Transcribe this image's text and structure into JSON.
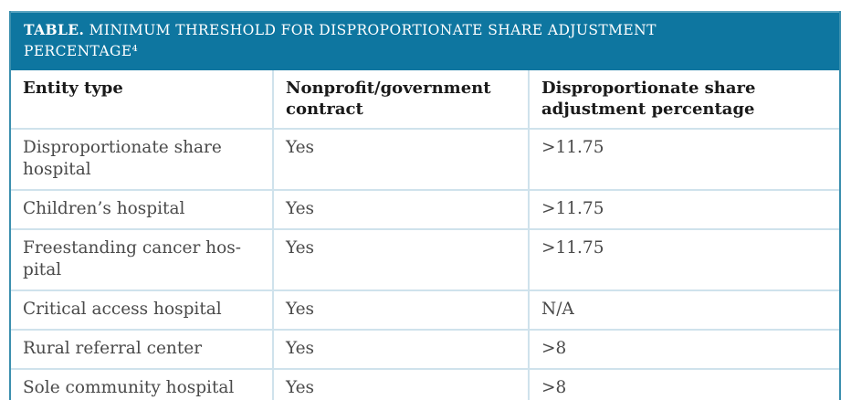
{
  "colors": {
    "band_background": "#0e76a0",
    "band_top_edge": "#5ba4c0",
    "band_text": "#ffffff",
    "side_border": "#3b8fae",
    "bottom_border": "#2d86a7",
    "cell_divider": "#cfe2ec",
    "header_text": "#1a1a1a",
    "body_text": "#4a4a4a"
  },
  "table": {
    "title_label": "TABLE.",
    "title_text": " MINIMUM THRESHOLD FOR DISPROPORTIONATE SHARE ADJUSTMENT\nPERCENTAGE⁴",
    "columns": [
      "Entity type",
      "Nonprofit/government\ncontract",
      "Disproportionate share\nadjustment percentage"
    ],
    "rows": [
      [
        "Disproportionate share\nhospital",
        "Yes",
        ">11.75"
      ],
      [
        "Children’s hospital",
        "Yes",
        ">11.75"
      ],
      [
        "Freestanding cancer hos-\npital",
        "Yes",
        ">11.75"
      ],
      [
        "Critical access hospital",
        "Yes",
        "N/A"
      ],
      [
        "Rural referral center",
        "Yes",
        ">8"
      ],
      [
        "Sole community hospital",
        "Yes",
        ">8"
      ]
    ]
  },
  "chart_data": {
    "type": "table",
    "title": "TABLE. MINIMUM THRESHOLD FOR DISPROPORTIONATE SHARE ADJUSTMENT PERCENTAGE⁴",
    "footnote_marker": "4",
    "columns": [
      "Entity type",
      "Nonprofit/government contract",
      "Disproportionate share adjustment percentage"
    ],
    "rows": [
      [
        "Disproportionate share hospital",
        "Yes",
        ">11.75"
      ],
      [
        "Children’s hospital",
        "Yes",
        ">11.75"
      ],
      [
        "Freestanding cancer hospital",
        "Yes",
        ">11.75"
      ],
      [
        "Critical access hospital",
        "Yes",
        "N/A"
      ],
      [
        "Rural referral center",
        "Yes",
        ">8"
      ],
      [
        "Sole community hospital",
        "Yes",
        ">8"
      ]
    ]
  }
}
